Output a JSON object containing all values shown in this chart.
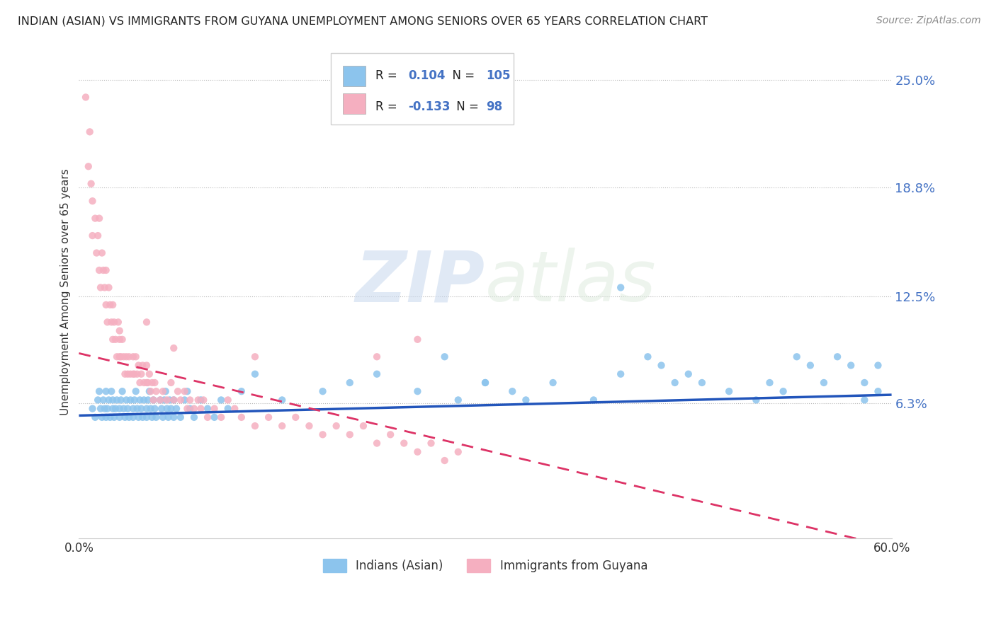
{
  "title": "INDIAN (ASIAN) VS IMMIGRANTS FROM GUYANA UNEMPLOYMENT AMONG SENIORS OVER 65 YEARS CORRELATION CHART",
  "source": "Source: ZipAtlas.com",
  "ylabel": "Unemployment Among Seniors over 65 years",
  "xlim": [
    0.0,
    0.6
  ],
  "ylim": [
    -0.015,
    0.27
  ],
  "yticks": [
    0.063,
    0.125,
    0.188,
    0.25
  ],
  "ytick_labels": [
    "6.3%",
    "12.5%",
    "18.8%",
    "25.0%"
  ],
  "xticks": [
    0.0,
    0.1,
    0.2,
    0.3,
    0.4,
    0.5,
    0.6
  ],
  "xtick_labels": [
    "0.0%",
    "",
    "",
    "",
    "",
    "",
    "60.0%"
  ],
  "blue_R": "0.104",
  "blue_N": "105",
  "pink_R": "-0.133",
  "pink_N": "98",
  "blue_color": "#8cc4ed",
  "pink_color": "#f5afc0",
  "trend_blue_color": "#2255bb",
  "trend_pink_color": "#dd3366",
  "text_color": "#4472c4",
  "background_color": "#ffffff",
  "watermark_zip": "ZIP",
  "watermark_atlas": "atlas",
  "legend_label_blue": "Indians (Asian)",
  "legend_label_pink": "Immigrants from Guyana",
  "blue_trend_x0": 0.0,
  "blue_trend_x1": 0.6,
  "blue_trend_y0": 0.056,
  "blue_trend_y1": 0.068,
  "pink_trend_x0": 0.0,
  "pink_trend_x1": 0.6,
  "pink_trend_y0": 0.092,
  "pink_trend_y1": -0.02,
  "blue_scatter_x": [
    0.01,
    0.012,
    0.014,
    0.015,
    0.016,
    0.017,
    0.018,
    0.019,
    0.02,
    0.02,
    0.021,
    0.022,
    0.023,
    0.024,
    0.025,
    0.025,
    0.026,
    0.027,
    0.028,
    0.03,
    0.03,
    0.031,
    0.032,
    0.033,
    0.034,
    0.035,
    0.036,
    0.037,
    0.038,
    0.04,
    0.04,
    0.041,
    0.042,
    0.043,
    0.044,
    0.045,
    0.046,
    0.047,
    0.048,
    0.05,
    0.05,
    0.051,
    0.052,
    0.053,
    0.054,
    0.055,
    0.056,
    0.057,
    0.06,
    0.061,
    0.062,
    0.063,
    0.064,
    0.065,
    0.066,
    0.067,
    0.068,
    0.07,
    0.07,
    0.072,
    0.075,
    0.078,
    0.08,
    0.082,
    0.085,
    0.09,
    0.095,
    0.1,
    0.105,
    0.11,
    0.12,
    0.13,
    0.15,
    0.18,
    0.2,
    0.22,
    0.25,
    0.28,
    0.3,
    0.32,
    0.33,
    0.35,
    0.38,
    0.4,
    0.42,
    0.43,
    0.44,
    0.45,
    0.46,
    0.48,
    0.5,
    0.51,
    0.52,
    0.53,
    0.54,
    0.55,
    0.56,
    0.57,
    0.58,
    0.58,
    0.59,
    0.59,
    0.27,
    0.3,
    0.4
  ],
  "blue_scatter_y": [
    0.06,
    0.055,
    0.065,
    0.07,
    0.06,
    0.055,
    0.065,
    0.06,
    0.055,
    0.07,
    0.06,
    0.065,
    0.055,
    0.07,
    0.06,
    0.065,
    0.055,
    0.06,
    0.065,
    0.06,
    0.055,
    0.065,
    0.07,
    0.06,
    0.055,
    0.065,
    0.06,
    0.055,
    0.065,
    0.06,
    0.055,
    0.065,
    0.07,
    0.06,
    0.055,
    0.065,
    0.06,
    0.055,
    0.065,
    0.06,
    0.055,
    0.065,
    0.07,
    0.06,
    0.055,
    0.065,
    0.06,
    0.055,
    0.065,
    0.06,
    0.055,
    0.065,
    0.07,
    0.06,
    0.055,
    0.065,
    0.06,
    0.055,
    0.065,
    0.06,
    0.055,
    0.065,
    0.07,
    0.06,
    0.055,
    0.065,
    0.06,
    0.055,
    0.065,
    0.06,
    0.07,
    0.08,
    0.065,
    0.07,
    0.075,
    0.08,
    0.07,
    0.065,
    0.075,
    0.07,
    0.065,
    0.075,
    0.065,
    0.08,
    0.09,
    0.085,
    0.075,
    0.08,
    0.075,
    0.07,
    0.065,
    0.075,
    0.07,
    0.09,
    0.085,
    0.075,
    0.09,
    0.085,
    0.065,
    0.075,
    0.085,
    0.07,
    0.09,
    0.075,
    0.13
  ],
  "pink_scatter_x": [
    0.005,
    0.007,
    0.008,
    0.009,
    0.01,
    0.01,
    0.012,
    0.013,
    0.014,
    0.015,
    0.015,
    0.016,
    0.017,
    0.018,
    0.019,
    0.02,
    0.02,
    0.021,
    0.022,
    0.023,
    0.024,
    0.025,
    0.025,
    0.026,
    0.027,
    0.028,
    0.029,
    0.03,
    0.03,
    0.031,
    0.032,
    0.033,
    0.034,
    0.035,
    0.036,
    0.037,
    0.038,
    0.04,
    0.04,
    0.041,
    0.042,
    0.043,
    0.044,
    0.045,
    0.046,
    0.047,
    0.048,
    0.05,
    0.05,
    0.051,
    0.052,
    0.053,
    0.054,
    0.055,
    0.056,
    0.057,
    0.06,
    0.062,
    0.065,
    0.068,
    0.07,
    0.073,
    0.075,
    0.078,
    0.08,
    0.082,
    0.085,
    0.088,
    0.09,
    0.092,
    0.095,
    0.1,
    0.105,
    0.11,
    0.115,
    0.12,
    0.13,
    0.14,
    0.15,
    0.16,
    0.17,
    0.18,
    0.19,
    0.2,
    0.21,
    0.22,
    0.23,
    0.24,
    0.25,
    0.26,
    0.27,
    0.28,
    0.13,
    0.22,
    0.25,
    0.03,
    0.05,
    0.07
  ],
  "pink_scatter_y": [
    0.24,
    0.2,
    0.22,
    0.19,
    0.18,
    0.16,
    0.17,
    0.15,
    0.16,
    0.14,
    0.17,
    0.13,
    0.15,
    0.14,
    0.13,
    0.12,
    0.14,
    0.11,
    0.13,
    0.12,
    0.11,
    0.1,
    0.12,
    0.11,
    0.1,
    0.09,
    0.11,
    0.09,
    0.1,
    0.09,
    0.1,
    0.09,
    0.08,
    0.09,
    0.08,
    0.09,
    0.08,
    0.08,
    0.09,
    0.08,
    0.09,
    0.08,
    0.085,
    0.075,
    0.08,
    0.085,
    0.075,
    0.075,
    0.085,
    0.075,
    0.08,
    0.07,
    0.075,
    0.065,
    0.075,
    0.07,
    0.065,
    0.07,
    0.065,
    0.075,
    0.065,
    0.07,
    0.065,
    0.07,
    0.06,
    0.065,
    0.06,
    0.065,
    0.06,
    0.065,
    0.055,
    0.06,
    0.055,
    0.065,
    0.06,
    0.055,
    0.05,
    0.055,
    0.05,
    0.055,
    0.05,
    0.045,
    0.05,
    0.045,
    0.05,
    0.04,
    0.045,
    0.04,
    0.035,
    0.04,
    0.03,
    0.035,
    0.09,
    0.09,
    0.1,
    0.105,
    0.11,
    0.095
  ]
}
